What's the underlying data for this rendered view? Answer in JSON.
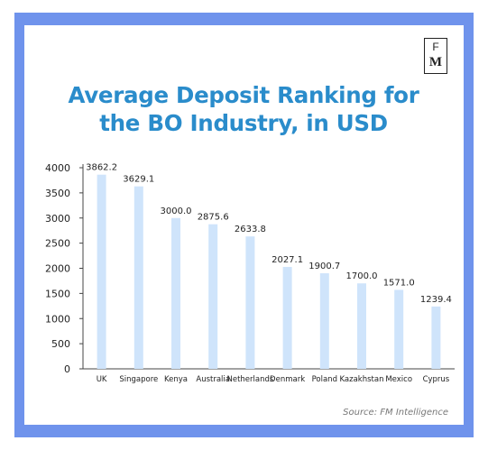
{
  "logo": {
    "top": "F",
    "bottom": "M"
  },
  "title": "Average Deposit Ranking for the BO Industry, in USD",
  "source": "Source: FM Intelligence",
  "colors": {
    "frame": "#6f93ec",
    "bar": "#cfe4fb",
    "title": "#2a8ccb"
  },
  "chart_data": {
    "type": "bar",
    "title": "Average Deposit Ranking for the BO Industry, in USD",
    "xlabel": "",
    "ylabel": "",
    "ylim": [
      0,
      4000
    ],
    "yticks": [
      0,
      500,
      1000,
      1500,
      2000,
      2500,
      3000,
      3500,
      4000
    ],
    "grid": false,
    "categories": [
      "UK",
      "Singapore",
      "Kenya",
      "Australia",
      "Netherlands",
      "Denmark",
      "Poland",
      "Kazakhstan",
      "Mexico",
      "Cyprus"
    ],
    "values": [
      3862.2,
      3629.1,
      3000.0,
      2875.6,
      2633.8,
      2027.1,
      1900.7,
      1700.0,
      1571.0,
      1239.4
    ],
    "data_labels": [
      "3862.2",
      "3629.1",
      "3000.0",
      "2875.6",
      "2633.8",
      "2027.1",
      "1900.7",
      "1700.0",
      "1571.0",
      "1239.4"
    ]
  }
}
